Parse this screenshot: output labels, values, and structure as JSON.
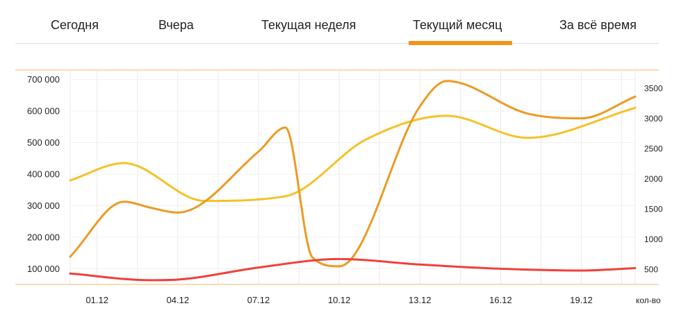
{
  "tabs": [
    {
      "label": "Сегодня",
      "active": false
    },
    {
      "label": "Вчера",
      "active": false
    },
    {
      "label": "Текущая неделя",
      "active": false
    },
    {
      "label": "Текущий месяц",
      "active": true
    },
    {
      "label": "За всё время",
      "active": false
    }
  ],
  "colors": {
    "accent": "#f0951c",
    "series_amount": "#f5c228",
    "series_count": "#ec9a22",
    "series_red": "#f0403a",
    "frame_line": "#f6d19a",
    "grid": "#e9e9e9"
  },
  "chart_data": {
    "type": "line",
    "grid": true,
    "x": [
      "30.11",
      "01.12",
      "02.12",
      "03.12",
      "04.12",
      "05.12",
      "06.12",
      "07.12",
      "08.12",
      "09.12",
      "10.12",
      "11.12",
      "12.12",
      "13.12",
      "14.12",
      "15.12",
      "16.12",
      "17.12",
      "18.12",
      "19.12",
      "20.12",
      "21.12"
    ],
    "xticks": [
      "01.12",
      "04.12",
      "07.12",
      "10.12",
      "13.12",
      "16.12",
      "19.12"
    ],
    "xlabel_right": "кол-во",
    "left_axis": {
      "ylim": [
        50000,
        730000
      ],
      "ticks": [
        100000,
        200000,
        300000,
        400000,
        500000,
        600000,
        700000
      ],
      "tick_labels": [
        "100 000",
        "200 000",
        "300 000",
        "400 000",
        "500 000",
        "600 000",
        "700 000"
      ]
    },
    "right_axis": {
      "ylim": [
        250,
        3800
      ],
      "ticks": [
        500,
        1000,
        1500,
        2000,
        2500,
        3000,
        3500
      ],
      "tick_labels": [
        "500",
        "1000",
        "1500",
        "2000",
        "2500",
        "3000",
        "3500"
      ]
    },
    "series": [
      {
        "key": "amount",
        "axis": "left",
        "color": "#f5c228",
        "x": [
          "30.11",
          "02.12",
          "05.12",
          "08.12",
          "11.12",
          "14.12",
          "17.12",
          "21.12"
        ],
        "values": [
          380000,
          435000,
          315000,
          330000,
          510000,
          585000,
          515000,
          610000
        ]
      },
      {
        "key": "count",
        "axis": "right",
        "color": "#ec9a22",
        "x": [
          "30.11",
          "02.12",
          "03.12",
          "04.12",
          "07.12",
          "08.12",
          "09.12",
          "10.12",
          "13.12",
          "14.12",
          "17.12",
          "19.12",
          "21.12"
        ],
        "values": [
          710,
          1620,
          1520,
          1440,
          2450,
          2850,
          700,
          550,
          3200,
          3620,
          3080,
          3000,
          3360
        ]
      },
      {
        "key": "red",
        "axis": "right",
        "color": "#f0403a",
        "x": [
          "30.11",
          "03.12",
          "04.12",
          "07.12",
          "10.12",
          "13.12",
          "16.12",
          "19.12",
          "21.12"
        ],
        "values": [
          430,
          320,
          330,
          530,
          670,
          580,
          510,
          480,
          520
        ]
      }
    ]
  }
}
